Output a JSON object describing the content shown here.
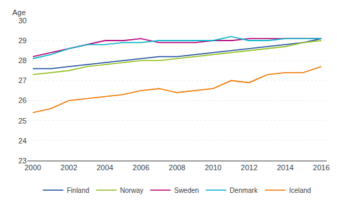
{
  "chart_data": {
    "type": "line",
    "ylabel": "Age",
    "x": [
      2000,
      2001,
      2002,
      2003,
      2004,
      2005,
      2006,
      2007,
      2008,
      2009,
      2010,
      2011,
      2012,
      2013,
      2014,
      2015,
      2016
    ],
    "series": [
      {
        "name": "Finland",
        "color": "#1f4e9e",
        "values": [
          27.6,
          27.6,
          27.7,
          27.8,
          27.9,
          28.0,
          28.1,
          28.2,
          28.2,
          28.3,
          28.4,
          28.5,
          28.6,
          28.7,
          28.8,
          28.9,
          29.1
        ]
      },
      {
        "name": "Norway",
        "color": "#92c01f",
        "values": [
          27.3,
          27.4,
          27.5,
          27.7,
          27.8,
          27.9,
          28.0,
          28.0,
          28.1,
          28.2,
          28.3,
          28.4,
          28.5,
          28.6,
          28.7,
          28.9,
          29.0
        ]
      },
      {
        "name": "Sweden",
        "color": "#b4007a",
        "values": [
          28.2,
          28.4,
          28.6,
          28.8,
          29.0,
          29.0,
          29.1,
          28.9,
          28.9,
          28.9,
          29.0,
          29.0,
          29.1,
          29.1,
          29.1,
          29.1,
          29.1
        ]
      },
      {
        "name": "Denmark",
        "color": "#00b4c8",
        "values": [
          28.1,
          28.3,
          28.6,
          28.8,
          28.8,
          28.9,
          28.9,
          29.0,
          29.0,
          29.0,
          29.0,
          29.2,
          29.0,
          29.0,
          29.1,
          29.1,
          29.1
        ]
      },
      {
        "name": "Iceland",
        "color": "#f07800",
        "values": [
          25.4,
          25.6,
          26.0,
          26.1,
          26.2,
          26.3,
          26.5,
          26.6,
          26.4,
          26.5,
          26.6,
          27.0,
          26.9,
          27.3,
          27.4,
          27.4,
          27.7
        ]
      }
    ],
    "xlim": [
      1999.7,
      2016.3
    ],
    "xticks": [
      2000,
      2002,
      2004,
      2006,
      2008,
      2010,
      2012,
      2014,
      2016
    ],
    "ylim": [
      23,
      30
    ],
    "yticks": [
      23,
      24,
      25,
      26,
      27,
      28,
      29,
      30
    ],
    "grid": true,
    "legend": "bottom"
  }
}
